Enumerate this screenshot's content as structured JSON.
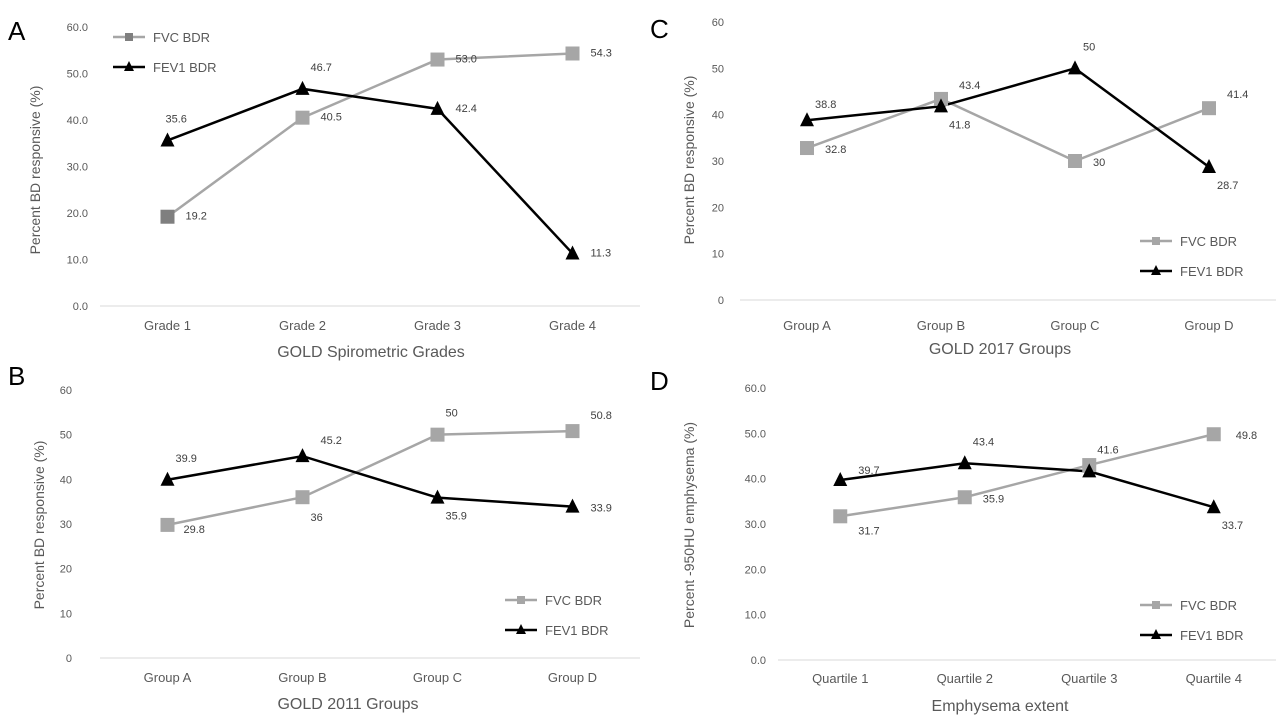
{
  "chart_data": [
    {
      "panel": "A",
      "type": "line",
      "categories": [
        "Grade 1",
        "Grade 2",
        "Grade 3",
        "Grade 4"
      ],
      "xlabel": "GOLD Spirometric Grades",
      "ylabel": "Percent BD responsive (%)",
      "ylim": [
        0,
        60
      ],
      "yticks": [
        "0.0",
        "10.0",
        "20.0",
        "30.0",
        "40.0",
        "50.0",
        "60.0"
      ],
      "legend": "top-left",
      "grid": false,
      "series": [
        {
          "name": "FVC BDR",
          "values": [
            19.2,
            40.5,
            53.0,
            54.3
          ],
          "labels": [
            "19.2",
            "40.5",
            "53.0",
            "54.3"
          ],
          "color": "#a6a6a6",
          "marker": "square"
        },
        {
          "name": "FEV1 BDR",
          "values": [
            35.6,
            46.7,
            42.4,
            11.3
          ],
          "labels": [
            "35.6",
            "46.7",
            "42.4",
            "11.3"
          ],
          "color": "#000000",
          "marker": "triangle"
        }
      ]
    },
    {
      "panel": "C",
      "type": "line",
      "categories": [
        "Group A",
        "Group B",
        "Group C",
        "Group D"
      ],
      "xlabel": "GOLD 2017 Groups",
      "ylabel": "Percent BD responsive (%)",
      "ylim": [
        0,
        60
      ],
      "yticks": [
        "0",
        "10",
        "20",
        "30",
        "40",
        "50",
        "60"
      ],
      "legend": "bottom-right",
      "grid": false,
      "series": [
        {
          "name": "FVC BDR",
          "values": [
            32.8,
            43.4,
            30,
            41.4
          ],
          "labels": [
            "32.8",
            "43.4",
            "30",
            "41.4"
          ],
          "color": "#a6a6a6",
          "marker": "square"
        },
        {
          "name": "FEV1 BDR",
          "values": [
            38.8,
            41.8,
            50,
            28.7
          ],
          "labels": [
            "38.8",
            "41.8",
            "50",
            "28.7"
          ],
          "color": "#000000",
          "marker": "triangle"
        }
      ]
    },
    {
      "panel": "B",
      "type": "line",
      "categories": [
        "Group A",
        "Group B",
        "Group C",
        "Group D"
      ],
      "xlabel": "GOLD 2011 Groups",
      "ylabel": "Percent BD responsive (%)",
      "ylim": [
        0,
        60
      ],
      "yticks": [
        "0",
        "10",
        "20",
        "30",
        "40",
        "50",
        "60"
      ],
      "legend": "bottom-right",
      "grid": false,
      "series": [
        {
          "name": "FVC BDR",
          "values": [
            29.8,
            36,
            50,
            50.8
          ],
          "labels": [
            "29.8",
            "36",
            "50",
            "50.8"
          ],
          "color": "#a6a6a6",
          "marker": "square"
        },
        {
          "name": "FEV1 BDR",
          "values": [
            39.9,
            45.2,
            35.9,
            33.9
          ],
          "labels": [
            "39.9",
            "45.2",
            "35.9",
            "33.9"
          ],
          "color": "#000000",
          "marker": "triangle"
        }
      ]
    },
    {
      "panel": "D",
      "type": "line",
      "categories": [
        "Quartile 1",
        "Quartile 2",
        "Quartile 3",
        "Quartile 4"
      ],
      "xlabel": "Emphysema extent",
      "ylabel": "Percent -950HU emphysema (%)",
      "ylim": [
        0,
        60
      ],
      "yticks": [
        "0.0",
        "10.0",
        "20.0",
        "30.0",
        "40.0",
        "50.0",
        "60.0"
      ],
      "legend": "bottom-right",
      "grid": false,
      "series": [
        {
          "name": "FVC BDR",
          "values": [
            31.7,
            35.9,
            43.0,
            49.8
          ],
          "labels": [
            "31.7",
            "35.9",
            "",
            "49.8"
          ],
          "color": "#a6a6a6",
          "marker": "square"
        },
        {
          "name": "FEV1 BDR",
          "values": [
            39.7,
            43.4,
            41.6,
            33.7
          ],
          "labels": [
            "39.7",
            "43.4",
            "41.6",
            "33.7"
          ],
          "color": "#000000",
          "marker": "triangle"
        }
      ]
    }
  ]
}
